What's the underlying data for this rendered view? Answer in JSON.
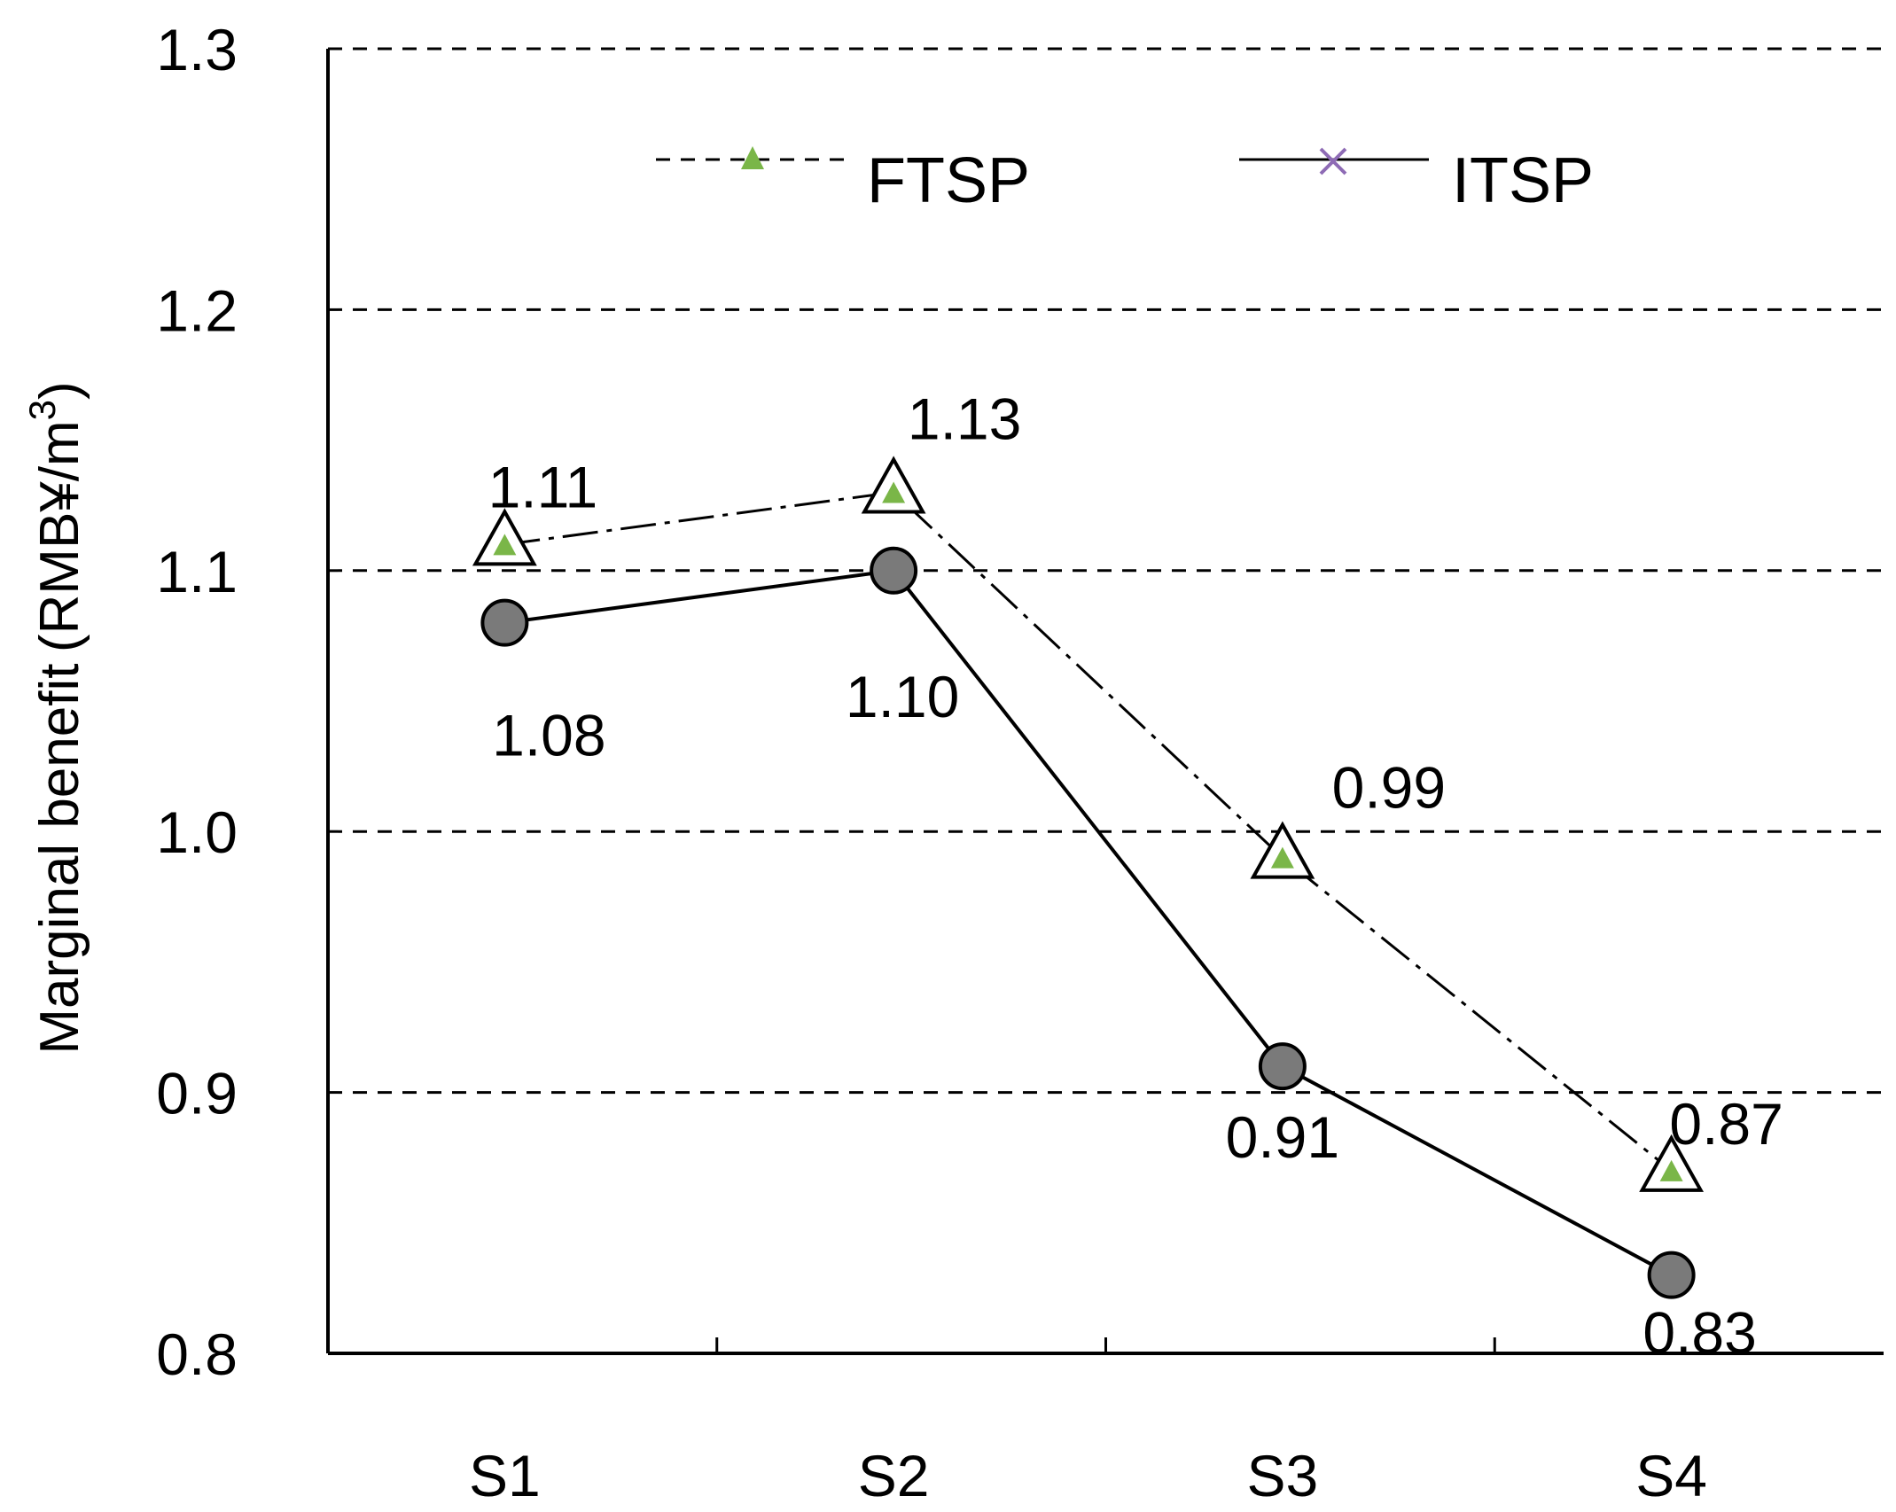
{
  "chart_data": {
    "type": "line",
    "categories": [
      "S1",
      "S2",
      "S3",
      "S4"
    ],
    "series": [
      {
        "name": "FTSP",
        "values": [
          1.11,
          1.13,
          0.99,
          0.87
        ],
        "value_labels": [
          "1.11",
          "1.13",
          "0.99",
          "0.87"
        ],
        "line_style": "dash-dot",
        "marker": "triangle",
        "marker_fill": "#ffffff",
        "inner_marker_color": "#7ab648",
        "color": "#000000"
      },
      {
        "name": "ITSP",
        "values": [
          1.08,
          1.1,
          0.91,
          0.83
        ],
        "value_labels": [
          "1.08",
          "1.10",
          "0.91",
          "0.83"
        ],
        "line_style": "solid",
        "marker": "circle",
        "marker_fill": "#7a7a7a",
        "legend_marker_color": "#8e6bb5",
        "color": "#000000"
      }
    ],
    "ylabel": "Marginal benefit (RMB¥/m",
    "ylabel_sup": "3",
    "ylabel_close": ")",
    "ylim": [
      0.8,
      1.3
    ],
    "yticks": [
      "0.8",
      "0.9",
      "1.0",
      "1.1",
      "1.2",
      "1.3"
    ],
    "grid": true,
    "legend_position": "top"
  }
}
